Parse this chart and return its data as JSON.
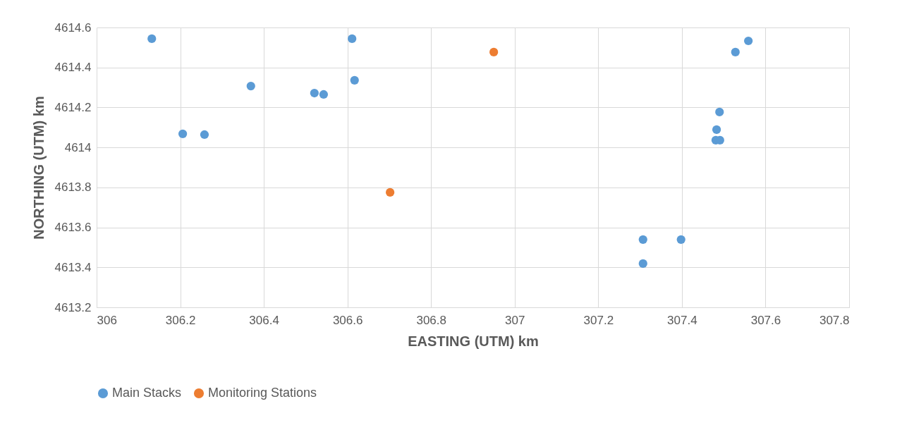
{
  "chart_data": {
    "type": "scatter",
    "xlabel": "EASTING (UTM) km",
    "ylabel": "NORTHING (UTM) km",
    "xlim": [
      306,
      307.8
    ],
    "xticks": [
      306,
      306.2,
      306.4,
      306.6,
      306.8,
      307,
      307.2,
      307.4,
      307.6,
      307.8
    ],
    "ylim": [
      4613.2,
      4614.6
    ],
    "yticks": [
      4613.2,
      4613.4,
      4613.6,
      4613.8,
      4614,
      4614.2,
      4614.4,
      4614.6
    ],
    "grid": true,
    "legend": "bottom",
    "marker": "circle",
    "series": [
      {
        "name": "Main Stacks",
        "color": "#5b9bd5",
        "x": [
          306.132,
          306.206,
          306.258,
          306.369,
          306.521,
          306.543,
          306.611,
          306.617,
          307.559,
          307.528,
          307.49,
          307.483,
          307.481,
          307.491,
          307.307,
          307.398,
          307.307
        ],
        "values": [
          4614.544,
          4614.068,
          4614.064,
          4614.307,
          4614.272,
          4614.265,
          4614.544,
          4614.336,
          4614.533,
          4614.477,
          4614.177,
          4614.089,
          4614.036,
          4614.036,
          4613.539,
          4613.539,
          4613.419
        ]
      },
      {
        "name": "Monitoring Stations",
        "color": "#ed7d31",
        "x": [
          306.95,
          306.702
        ],
        "values": [
          4614.477,
          4613.775
        ]
      }
    ]
  }
}
